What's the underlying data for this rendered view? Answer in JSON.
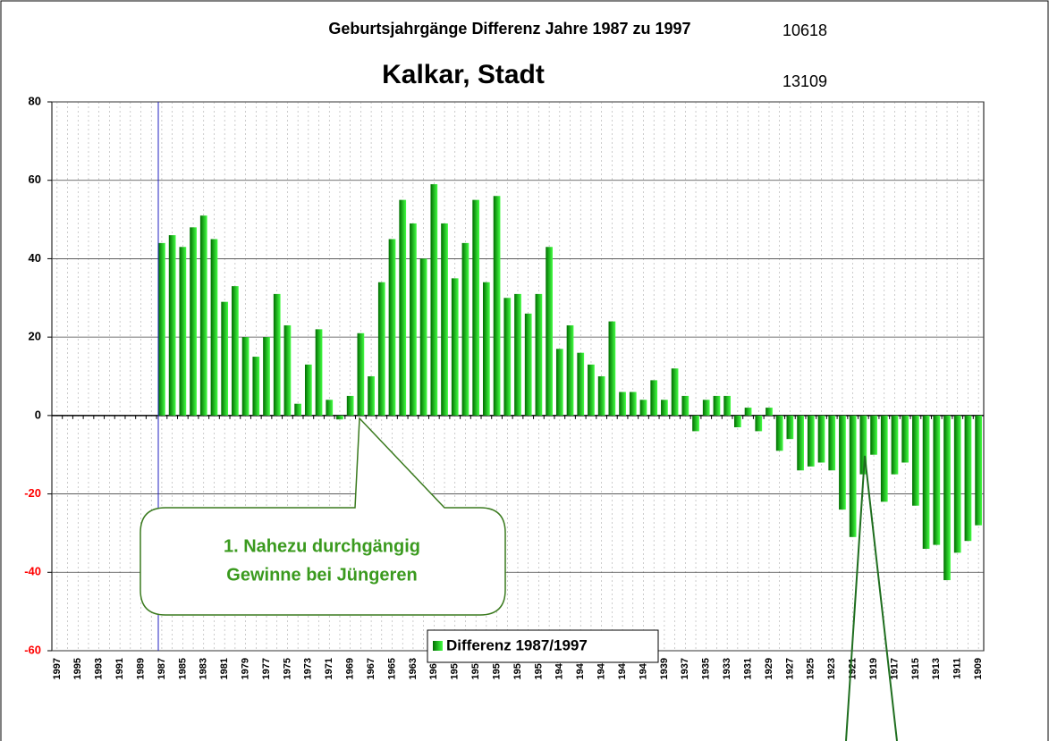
{
  "chart_data": {
    "type": "bar",
    "title": "Geburtsjahrgänge Differenz Jahre 1987 zu 1997",
    "title_number": "10618",
    "subtitle": "Kalkar, Stadt",
    "subtitle_number": "13109",
    "annotation": [
      "1. Nahezu durchgängig",
      "Gewinne bei Jüngeren"
    ],
    "categories": [
      "1997",
      null,
      "1995",
      null,
      "1993",
      null,
      "1991",
      null,
      "1989",
      null,
      "1987",
      null,
      "1985",
      null,
      "1983",
      null,
      "1981",
      null,
      "1979",
      null,
      "1977",
      null,
      "1975",
      null,
      "1973",
      null,
      "1971",
      null,
      "1969",
      null,
      "1967",
      null,
      "1965",
      null,
      "1963",
      null,
      "1961",
      null,
      "1959",
      null,
      "1957",
      null,
      "1955",
      null,
      "1953",
      null,
      "1951",
      null,
      "1949",
      null,
      "1947",
      null,
      "1945",
      null,
      "1943",
      null,
      "1941",
      null,
      "1939",
      null,
      "1937",
      null,
      "1935",
      null,
      "1933",
      null,
      "1931",
      null,
      "1929",
      null,
      "1927",
      null,
      "1925",
      null,
      "1923",
      null,
      "1921",
      null,
      "1919",
      null,
      "1917",
      null,
      "1915",
      null,
      "1913",
      null,
      "1911",
      null,
      "1909"
    ],
    "series": [
      {
        "name": "Differenz 1987/1997",
        "colors": [
          "#006e00",
          "#44ff44"
        ],
        "values": [
          0,
          0,
          0,
          0,
          0,
          0,
          0,
          0,
          0,
          0,
          44,
          46,
          43,
          48,
          51,
          45,
          29,
          33,
          20,
          15,
          20,
          31,
          23,
          3,
          13,
          22,
          4,
          -1,
          5,
          21,
          10,
          34,
          45,
          55,
          49,
          40,
          59,
          49,
          35,
          44,
          55,
          34,
          56,
          30,
          31,
          26,
          31,
          43,
          17,
          23,
          16,
          13,
          10,
          24,
          6,
          6,
          4,
          9,
          4,
          12,
          5,
          -4,
          4,
          5,
          5,
          -3,
          2,
          -4,
          2,
          -9,
          -6,
          -14,
          -13,
          -12,
          -14,
          -24,
          -31,
          -15,
          -10,
          -22,
          -15,
          -12,
          -23,
          -34,
          -33,
          -42,
          -35,
          -32,
          -28
        ]
      }
    ],
    "ylim": [
      -60,
      80
    ],
    "yticks": [
      -60,
      -40,
      -20,
      0,
      20,
      40,
      60,
      80
    ],
    "negative_tick_color": "#ff0000",
    "grid": true
  }
}
